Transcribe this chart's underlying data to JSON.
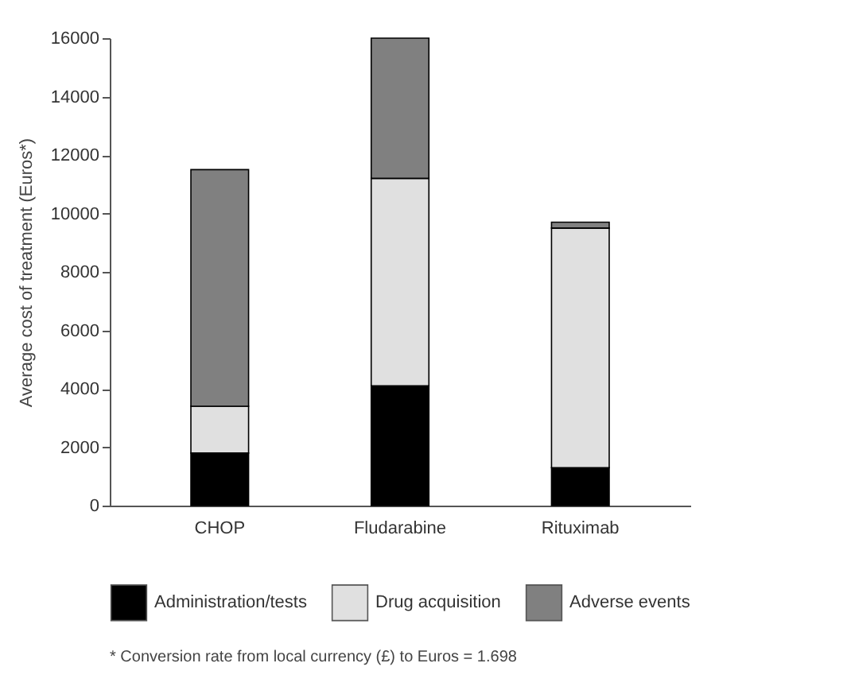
{
  "chart_data": {
    "type": "bar",
    "stacked": true,
    "ylabel": "Average cost of treatment (Euros*)",
    "categories": [
      "CHOP",
      "Fludarabine",
      "Rituximab"
    ],
    "series": [
      {
        "name": "Administration/tests",
        "color": "#000000",
        "values": [
          1800,
          4100,
          1300
        ]
      },
      {
        "name": "Drug acquisition",
        "color": "#e0e0e0",
        "values": [
          1600,
          7100,
          8200
        ]
      },
      {
        "name": "Adverse events",
        "color": "#808080",
        "values": [
          8100,
          4800,
          200
        ]
      }
    ],
    "ylim": [
      0,
      16000
    ],
    "yticks": [
      0,
      2000,
      4000,
      6000,
      8000,
      10000,
      12000,
      14000,
      16000
    ],
    "grid": false,
    "legend": "bottom",
    "annotations": [
      "* Conversion rate from local currency (£) to Euros = 1.698"
    ]
  }
}
